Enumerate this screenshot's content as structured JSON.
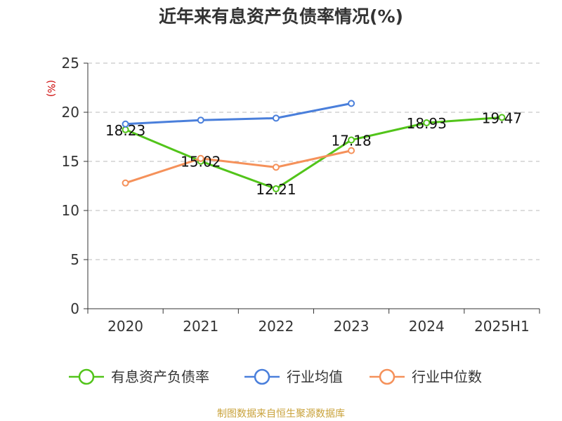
{
  "chart_data": {
    "type": "line",
    "title": "近年来有息资产负债率情况(%)",
    "ylabel": "(%)",
    "xlabel": "",
    "categories": [
      "2020",
      "2021",
      "2022",
      "2023",
      "2024",
      "2025H1"
    ],
    "ylim": [
      0,
      25
    ],
    "yticks": [
      0,
      5,
      10,
      15,
      20,
      25
    ],
    "grid": true,
    "legend_position": "bottom",
    "series": [
      {
        "name": "有息资产负债率",
        "color": "#52c41a",
        "values": [
          18.23,
          15.02,
          12.21,
          17.18,
          18.93,
          19.47
        ],
        "labels": [
          "18.23",
          "15.02",
          "12.21",
          "17.18",
          "18.93",
          "19.47"
        ]
      },
      {
        "name": "行业均值",
        "color": "#4a7fdb",
        "values": [
          18.8,
          19.2,
          19.4,
          20.9,
          null,
          null
        ]
      },
      {
        "name": "行业中位数",
        "color": "#f5915a",
        "values": [
          12.8,
          15.3,
          14.4,
          16.1,
          null,
          null
        ]
      }
    ]
  },
  "source": "制图数据来自恒生聚源数据库"
}
